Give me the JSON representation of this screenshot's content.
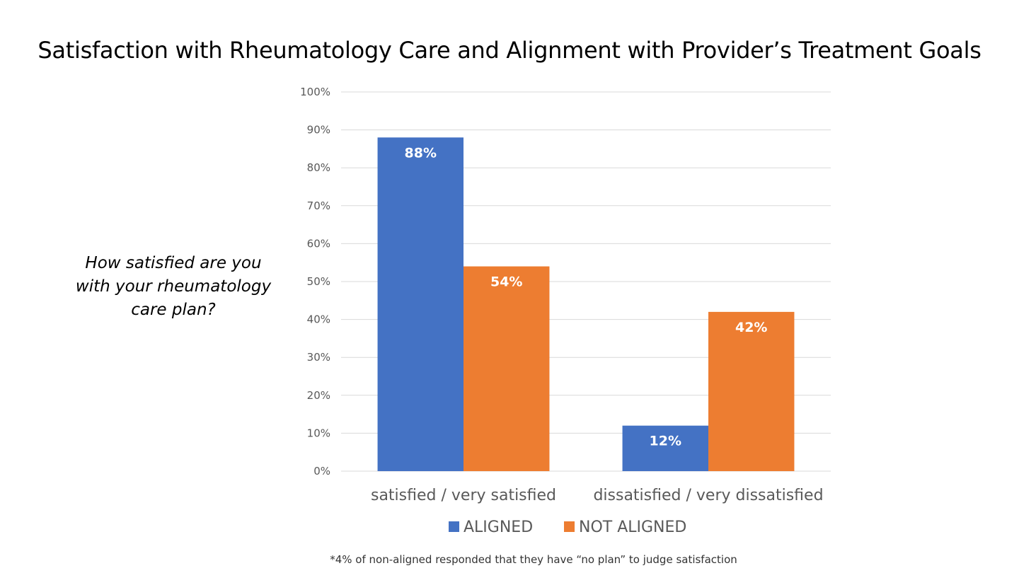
{
  "chart_data": {
    "type": "bar",
    "title": "Satisfaction with Rheumatology Care and Alignment with Provider’s Treatment Goals",
    "question": "How satisfied are you with your rheumatology care plan?",
    "categories": [
      "satisfied / very satisfied",
      "dissatisfied / very dissatisfied"
    ],
    "series": [
      {
        "name": "ALIGNED",
        "color": "#4472C4",
        "values": [
          88,
          12
        ],
        "labels": [
          "88%",
          "12%"
        ]
      },
      {
        "name": "NOT ALIGNED",
        "color": "#ED7D31",
        "values": [
          54,
          42
        ],
        "labels": [
          "54%",
          "42%"
        ]
      }
    ],
    "yticks": [
      "0%",
      "10%",
      "20%",
      "30%",
      "40%",
      "50%",
      "60%",
      "70%",
      "80%",
      "90%",
      "100%"
    ],
    "ylim": [
      0,
      100
    ],
    "xlabel": "",
    "ylabel": "",
    "grid": true,
    "legend": "bottom",
    "footnote": "*4% of non-aligned responded that they have “no plan” to judge satisfaction"
  }
}
